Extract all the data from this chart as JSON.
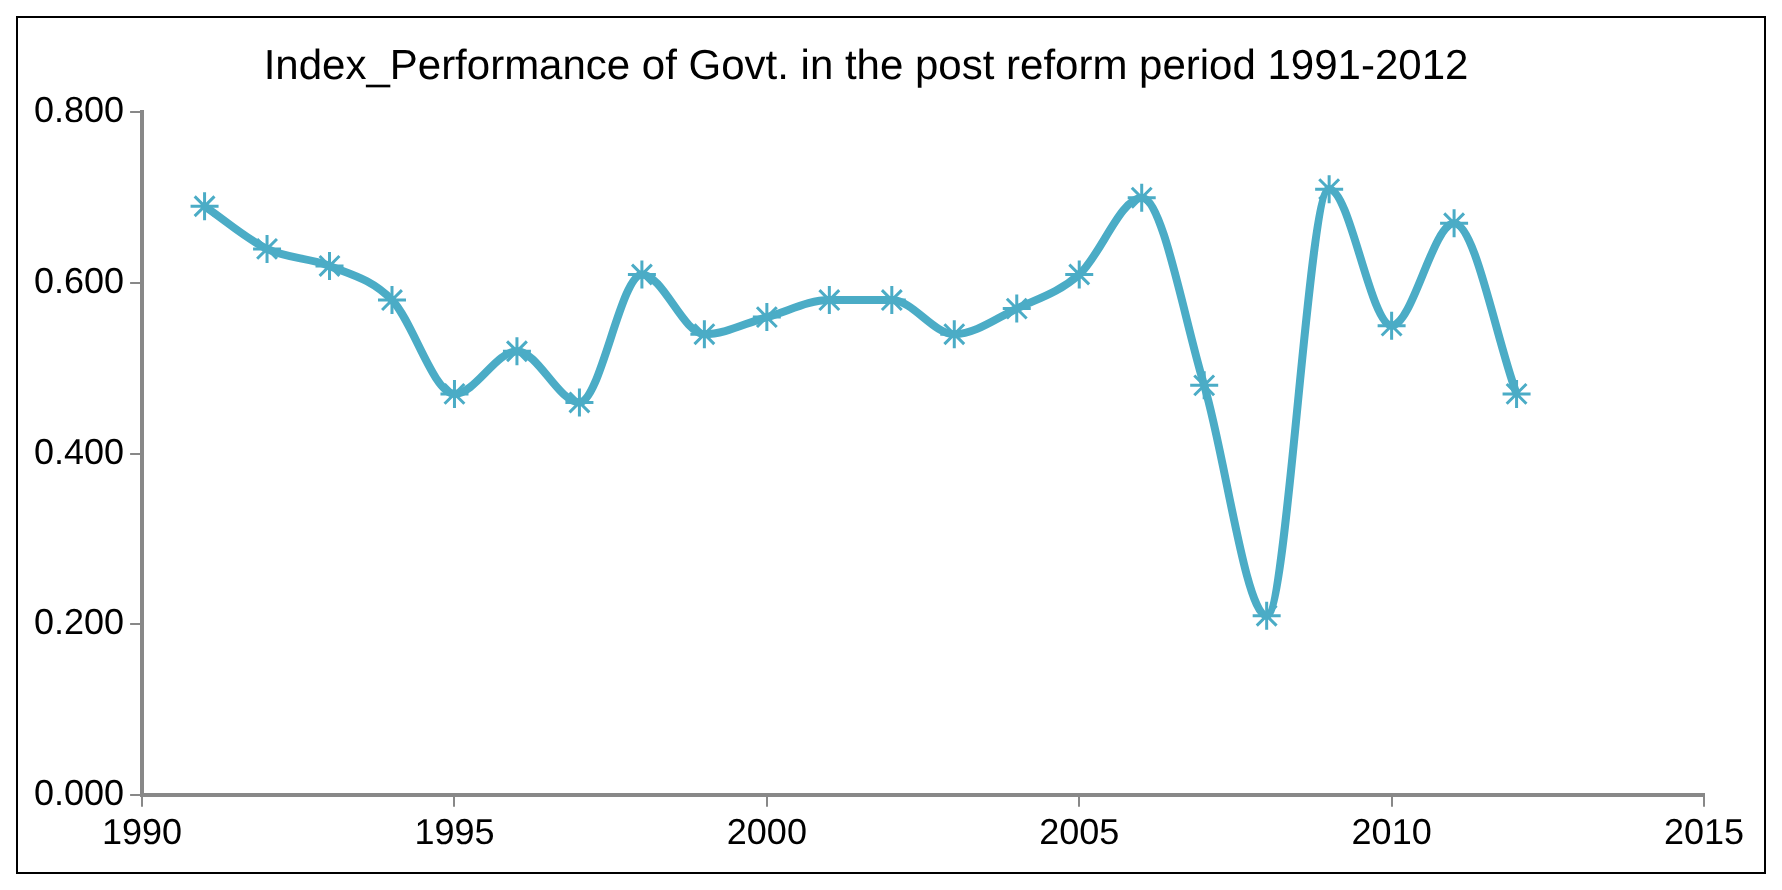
{
  "chart_data": {
    "type": "line",
    "title": "Index_Performance of Govt. in the post reform period 1991-2012",
    "x": [
      1991,
      1992,
      1993,
      1994,
      1995,
      1996,
      1997,
      1998,
      1999,
      2000,
      2001,
      2002,
      2003,
      2004,
      2005,
      2006,
      2007,
      2008,
      2009,
      2010,
      2011,
      2012
    ],
    "series": [
      {
        "color": "#4bacc6",
        "values": [
          0.69,
          0.64,
          0.62,
          0.58,
          0.47,
          0.52,
          0.46,
          0.61,
          0.54,
          0.56,
          0.58,
          0.58,
          0.54,
          0.57,
          0.61,
          0.7,
          0.48,
          0.21,
          0.71,
          0.55,
          0.67,
          0.47
        ]
      }
    ],
    "xlim": [
      1990,
      2015
    ],
    "xticks": [
      1990,
      1995,
      2000,
      2005,
      2010,
      2015
    ],
    "ylim": [
      0,
      0.8
    ],
    "yticks": [
      {
        "value": 0,
        "label": "0.000"
      },
      {
        "value": 0.2,
        "label": "0.200"
      },
      {
        "value": 0.4,
        "label": "0.400"
      },
      {
        "value": 0.6,
        "label": "0.600"
      },
      {
        "value": 0.8,
        "label": "0.800"
      }
    ],
    "grid": false,
    "legend": false,
    "marker": "cross",
    "line_style": "solid"
  }
}
